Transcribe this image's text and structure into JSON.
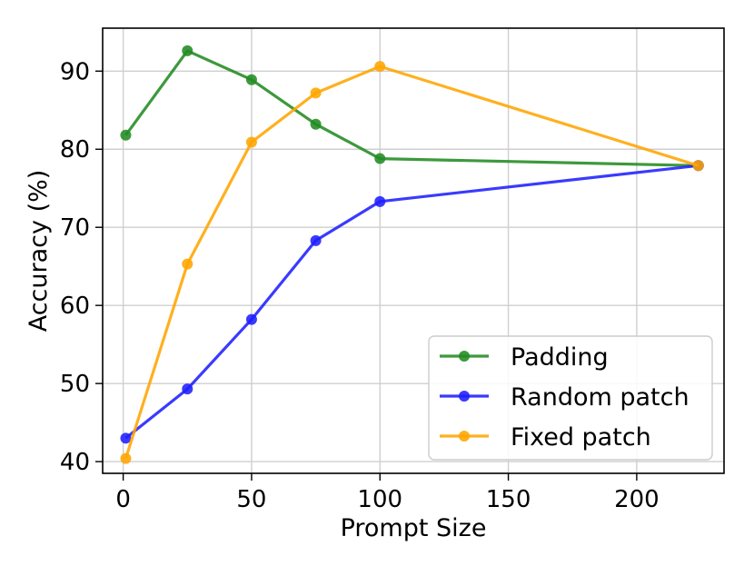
{
  "chart_data": {
    "type": "line",
    "title": "",
    "xlabel": "Prompt Size",
    "ylabel": "Accuracy (%)",
    "xlim": [
      -8,
      234
    ],
    "ylim": [
      38.5,
      95.5
    ],
    "xticks": [
      0,
      50,
      100,
      150,
      200
    ],
    "yticks": [
      40,
      50,
      60,
      70,
      80,
      90
    ],
    "grid": true,
    "legend_position": "lower-right",
    "series": [
      {
        "name": "Padding",
        "color": "#228b22",
        "x": [
          1,
          25,
          50,
          75,
          100,
          224
        ],
        "y": [
          81.8,
          92.6,
          88.9,
          83.2,
          78.8,
          77.9
        ]
      },
      {
        "name": "Random patch",
        "color": "#1f1fff",
        "x": [
          1,
          25,
          50,
          75,
          100,
          224
        ],
        "y": [
          43.0,
          49.3,
          58.2,
          68.3,
          73.3,
          77.9
        ]
      },
      {
        "name": "Fixed patch",
        "color": "#ffa500",
        "x": [
          1,
          25,
          50,
          75,
          100,
          224
        ],
        "y": [
          40.4,
          65.3,
          80.9,
          87.2,
          90.6,
          77.9
        ]
      }
    ]
  }
}
